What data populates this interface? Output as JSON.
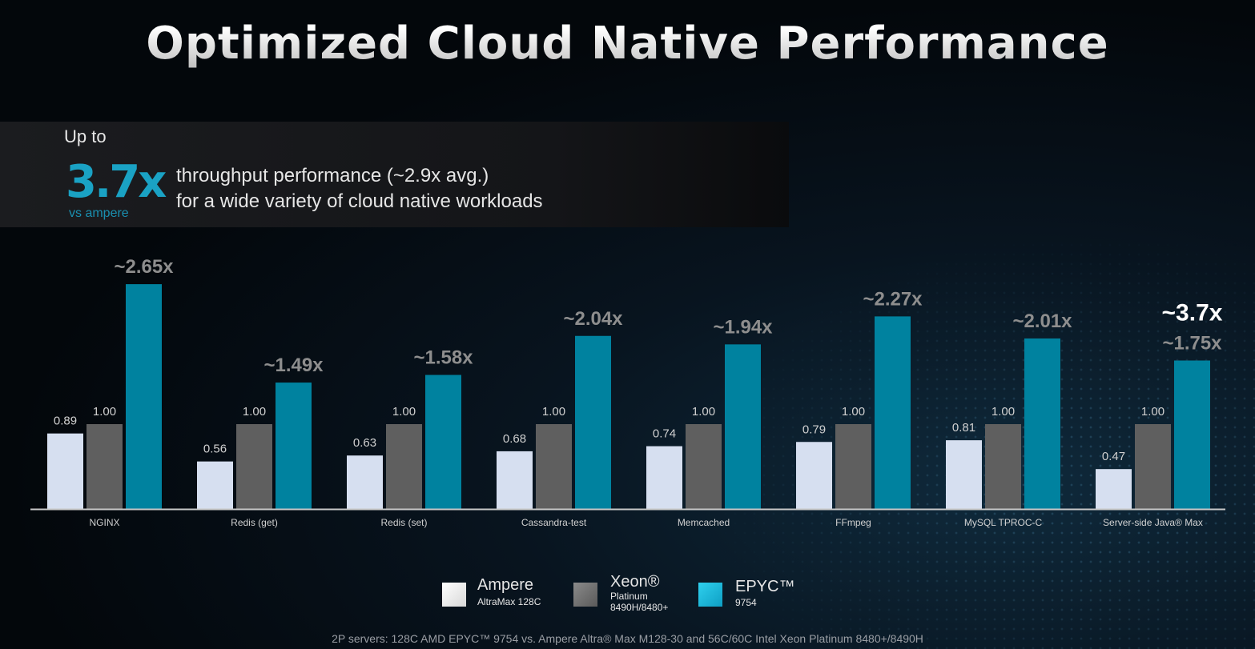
{
  "title": "Optimized Cloud Native Performance",
  "banner": {
    "up_to": "Up to",
    "headline_value": "3.7x",
    "headline_sub": "vs ampere",
    "line1": "throughput performance (~2.9x avg.)",
    "line2": "for a wide variety of cloud native workloads"
  },
  "colors": {
    "ampere": "#d6dff0",
    "xeon": "#5f5f5f",
    "epyc": "#00829f",
    "accent": "#1aa2c4"
  },
  "chart_data": {
    "type": "bar",
    "title": "Optimized Cloud Native Performance",
    "xlabel": "",
    "ylabel": "",
    "ylim": [
      0,
      3.0
    ],
    "grid": false,
    "legend_position": "bottom-center",
    "categories": [
      "NGINX",
      "Redis (get)",
      "Redis (set)",
      "Cassandra-test",
      "Memcached",
      "FFmpeg",
      "MySQL TPROC-C",
      "Server-side Java® Max"
    ],
    "series": [
      {
        "name": "Ampere",
        "values": [
          0.89,
          0.56,
          0.63,
          0.68,
          0.74,
          0.79,
          0.81,
          0.47
        ],
        "labels": [
          "0.89",
          "0.56",
          "0.63",
          "0.68",
          "0.74",
          "0.79",
          "0.81",
          "0.47"
        ]
      },
      {
        "name": "Xeon®",
        "values": [
          1.0,
          1.0,
          1.0,
          1.0,
          1.0,
          1.0,
          1.0,
          1.0
        ],
        "labels": [
          "1.00",
          "1.00",
          "1.00",
          "1.00",
          "1.00",
          "1.00",
          "1.00",
          "1.00"
        ]
      },
      {
        "name": "EPYC™",
        "values": [
          2.65,
          1.49,
          1.58,
          2.04,
          1.94,
          2.27,
          2.01,
          1.75
        ],
        "labels": [
          "~2.65x",
          "~1.49x",
          "~1.58x",
          "~2.04x",
          "~1.94x",
          "~2.27x",
          "~2.01x",
          "~1.75x"
        ]
      }
    ],
    "annotations": [
      {
        "category": "Server-side Java® Max",
        "text": "~3.7x"
      }
    ]
  },
  "legend": [
    {
      "name": "Ampere",
      "sub": [
        "AltraMax 128C"
      ]
    },
    {
      "name": "Xeon®",
      "sub": [
        "Platinum",
        "8490H/8480+"
      ]
    },
    {
      "name": "EPYC™",
      "sub": [
        "9754"
      ]
    }
  ],
  "footnote": "2P servers: 128C AMD EPYC™ 9754 vs. Ampere Altra® Max M128-30 and 56C/60C Intel Xeon Platinum 8480+/8490H"
}
